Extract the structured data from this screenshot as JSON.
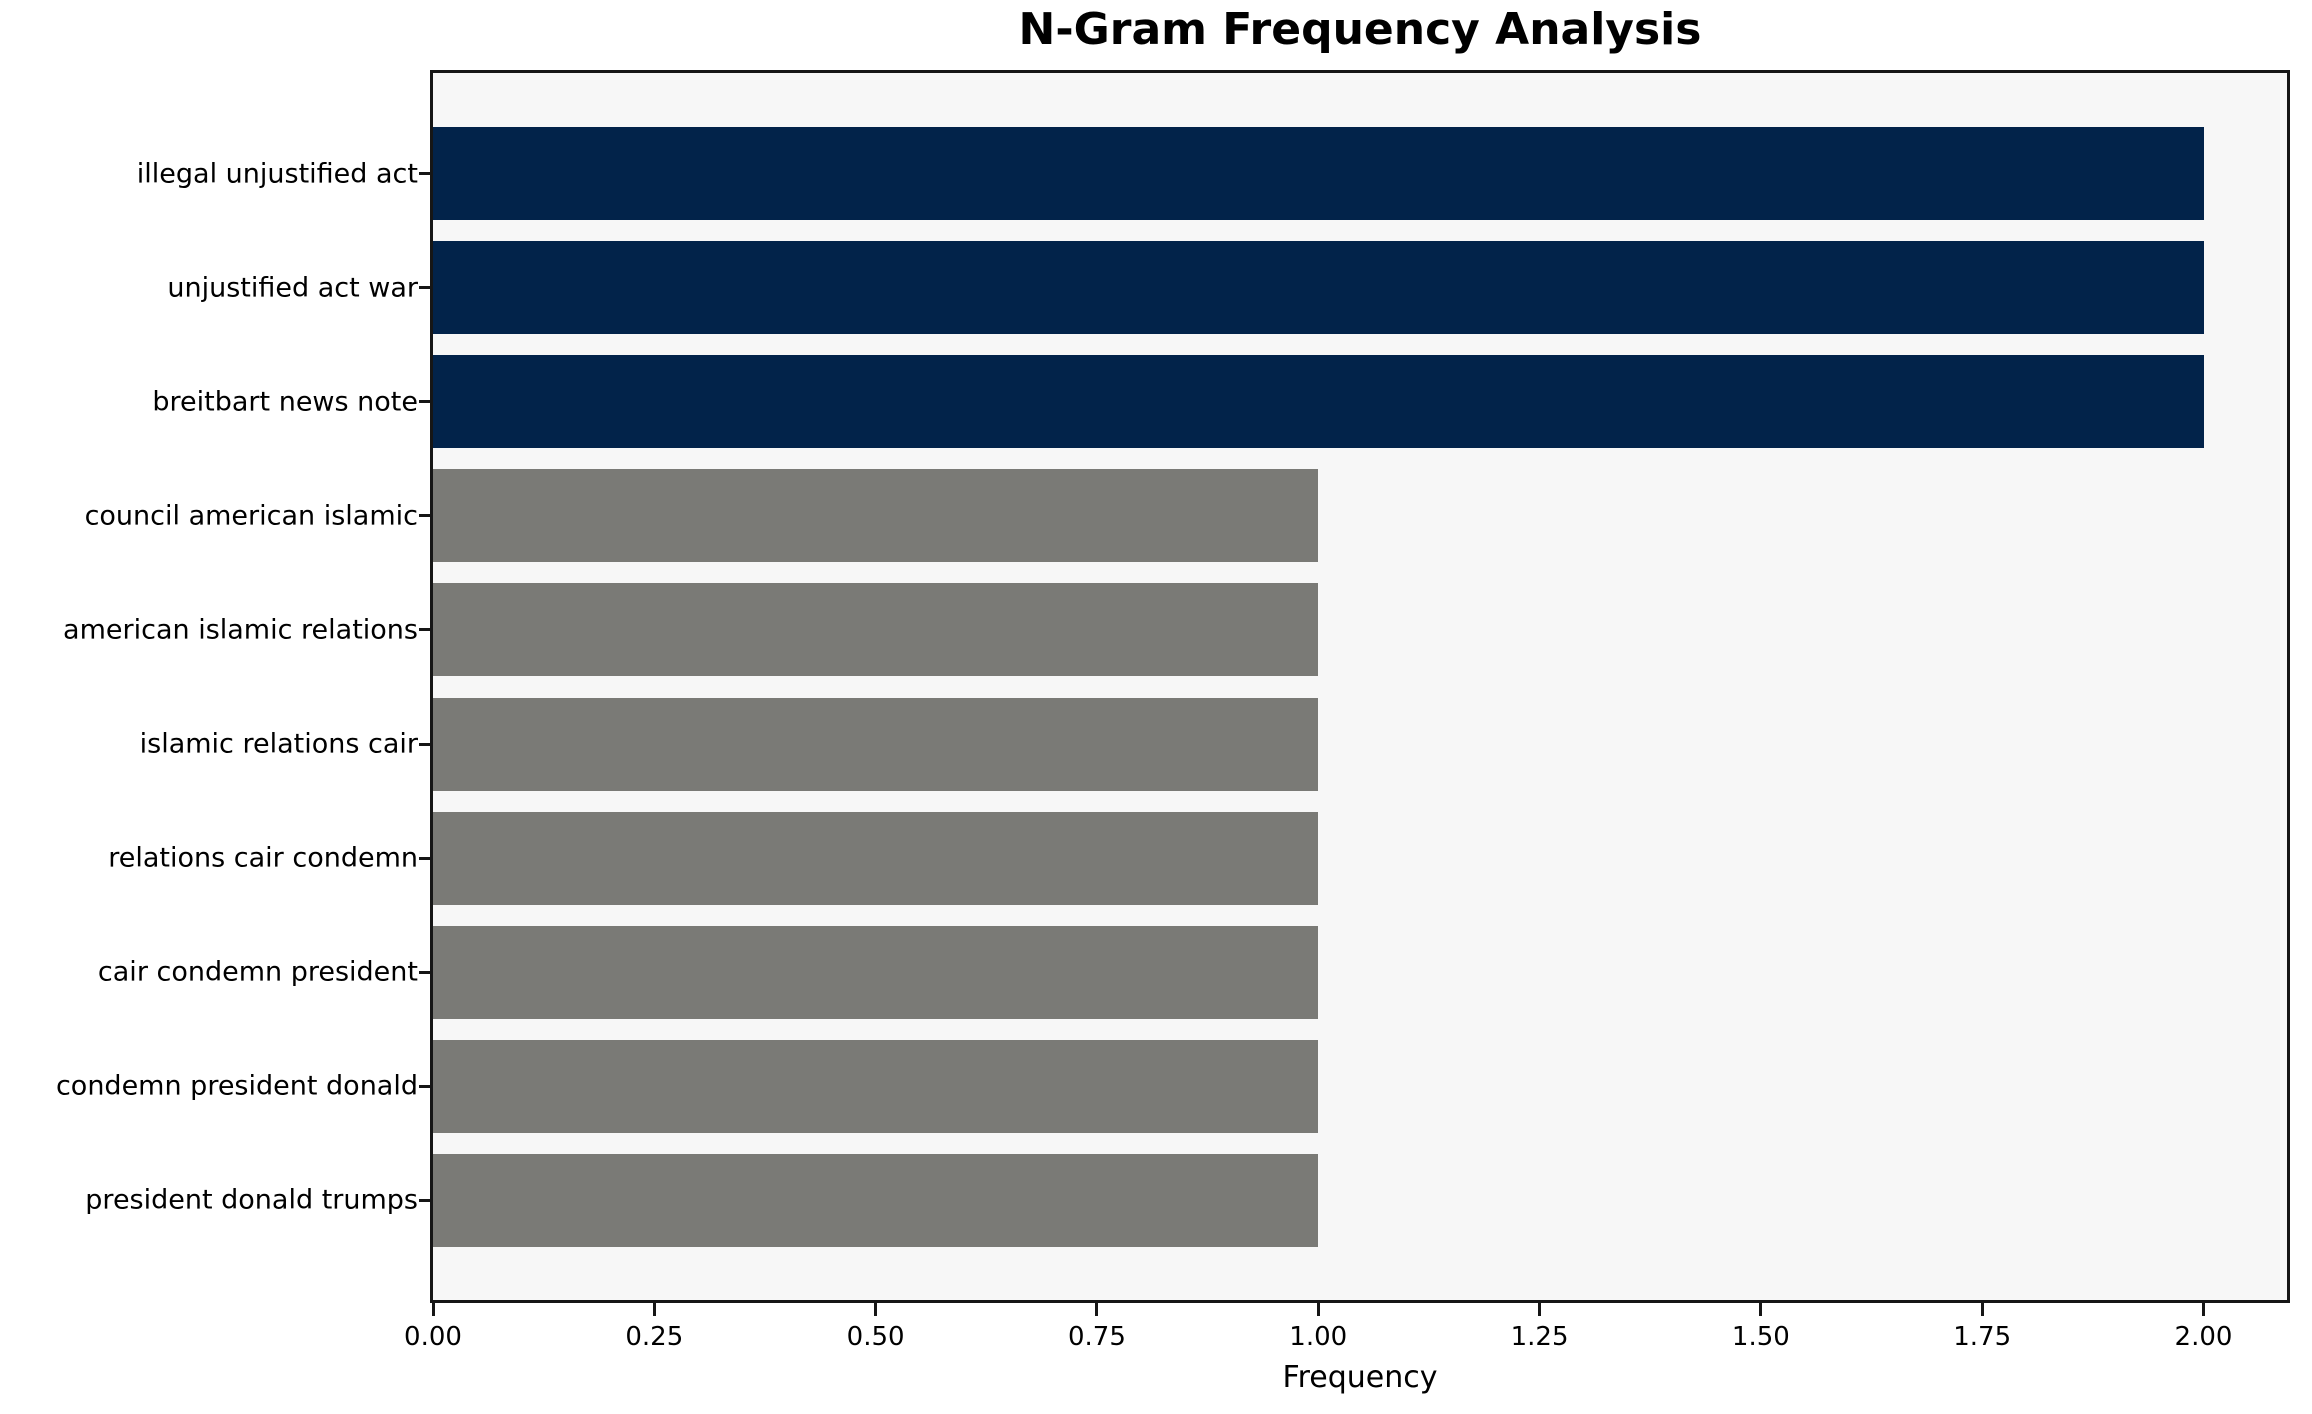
{
  "chart_data": {
    "type": "bar",
    "orientation": "horizontal",
    "title": "N-Gram Frequency Analysis",
    "xlabel": "Frequency",
    "ylabel": "",
    "categories": [
      "illegal unjustified act",
      "unjustified act war",
      "breitbart news note",
      "council american islamic",
      "american islamic relations",
      "islamic relations cair",
      "relations cair condemn",
      "cair condemn president",
      "condemn president donald",
      "president donald trumps"
    ],
    "values": [
      2,
      2,
      2,
      1,
      1,
      1,
      1,
      1,
      1,
      1
    ],
    "colors": [
      "#02234a",
      "#02234a",
      "#02234a",
      "#7a7a76",
      "#7a7a76",
      "#7a7a76",
      "#7a7a76",
      "#7a7a76",
      "#7a7a76",
      "#7a7a76"
    ],
    "xlim": [
      0,
      2.1
    ],
    "xticks": [
      0,
      0.25,
      0.5,
      0.75,
      1.0,
      1.25,
      1.5,
      1.75,
      2.0
    ],
    "xtick_labels": [
      "0.00",
      "0.25",
      "0.50",
      "0.75",
      "1.00",
      "1.25",
      "1.50",
      "1.75",
      "2.00"
    ],
    "grid": false,
    "legend": false,
    "plot_background": "#f7f7f7",
    "figure_background": "#ffffff",
    "spine_color": "#161616",
    "highlight_bar_color": "#02234a",
    "default_bar_color": "#7a7a76"
  }
}
